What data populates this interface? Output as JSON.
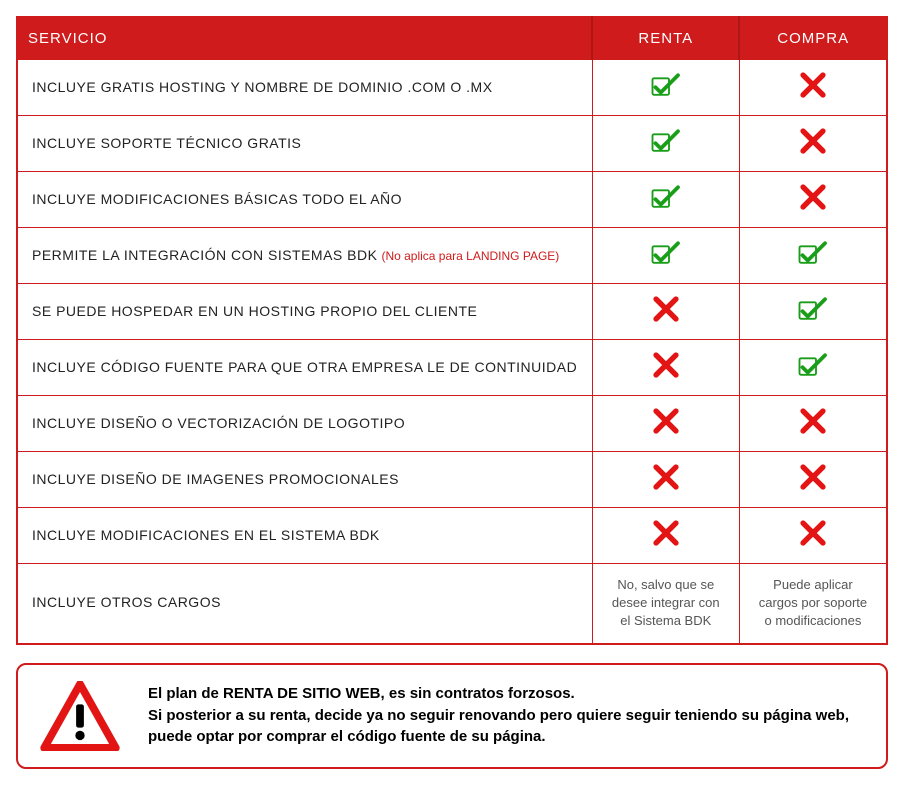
{
  "table": {
    "headers": {
      "service": "SERVICIO",
      "renta": "RENTA",
      "compra": "COMPRA"
    },
    "rows": [
      {
        "label": "INCLUYE GRATIS HOSTING Y NOMBRE DE DOMINIO .COM O .MX",
        "note": "",
        "renta": "check",
        "compra": "cross"
      },
      {
        "label": "INCLUYE SOPORTE TÉCNICO GRATIS",
        "note": "",
        "renta": "check",
        "compra": "cross"
      },
      {
        "label": "INCLUYE MODIFICACIONES BÁSICAS TODO EL AÑO",
        "note": "",
        "renta": "check",
        "compra": "cross"
      },
      {
        "label": "PERMITE LA INTEGRACIÓN CON SISTEMAS BDK",
        "note": "(No aplica para LANDING PAGE)",
        "renta": "check",
        "compra": "check"
      },
      {
        "label": "SE PUEDE HOSPEDAR EN UN HOSTING PROPIO DEL CLIENTE",
        "note": "",
        "renta": "cross",
        "compra": "check"
      },
      {
        "label": "INCLUYE CÓDIGO FUENTE PARA QUE OTRA EMPRESA LE DE CONTINUIDAD",
        "note": "",
        "renta": "cross",
        "compra": "check"
      },
      {
        "label": "INCLUYE DISEÑO O VECTORIZACIÓN DE LOGOTIPO",
        "note": "",
        "renta": "cross",
        "compra": "cross"
      },
      {
        "label": "INCLUYE DISEÑO DE IMAGENES PROMOCIONALES",
        "note": "",
        "renta": "cross",
        "compra": "cross"
      },
      {
        "label": "INCLUYE MODIFICACIONES EN EL SISTEMA BDK",
        "note": "",
        "renta": "cross",
        "compra": "cross"
      },
      {
        "label": "INCLUYE OTROS CARGOS",
        "note": "",
        "renta_text": "No, salvo que se desee integrar con el Sistema BDK",
        "compra_text": "Puede aplicar cargos por soporte o modificaciones"
      }
    ]
  },
  "notice": {
    "line1": "El plan de RENTA DE SITIO WEB, es sin contratos forzosos.",
    "line2": "Si posterior a su renta, decide ya no seguir renovando pero quiere seguir teniendo su página web, puede optar por comprar el código fuente de su página."
  },
  "colors": {
    "primary_red": "#cf1b1b",
    "check_green": "#1a9e1a",
    "check_border": "#1a9e1a",
    "cross_red": "#e31414"
  }
}
